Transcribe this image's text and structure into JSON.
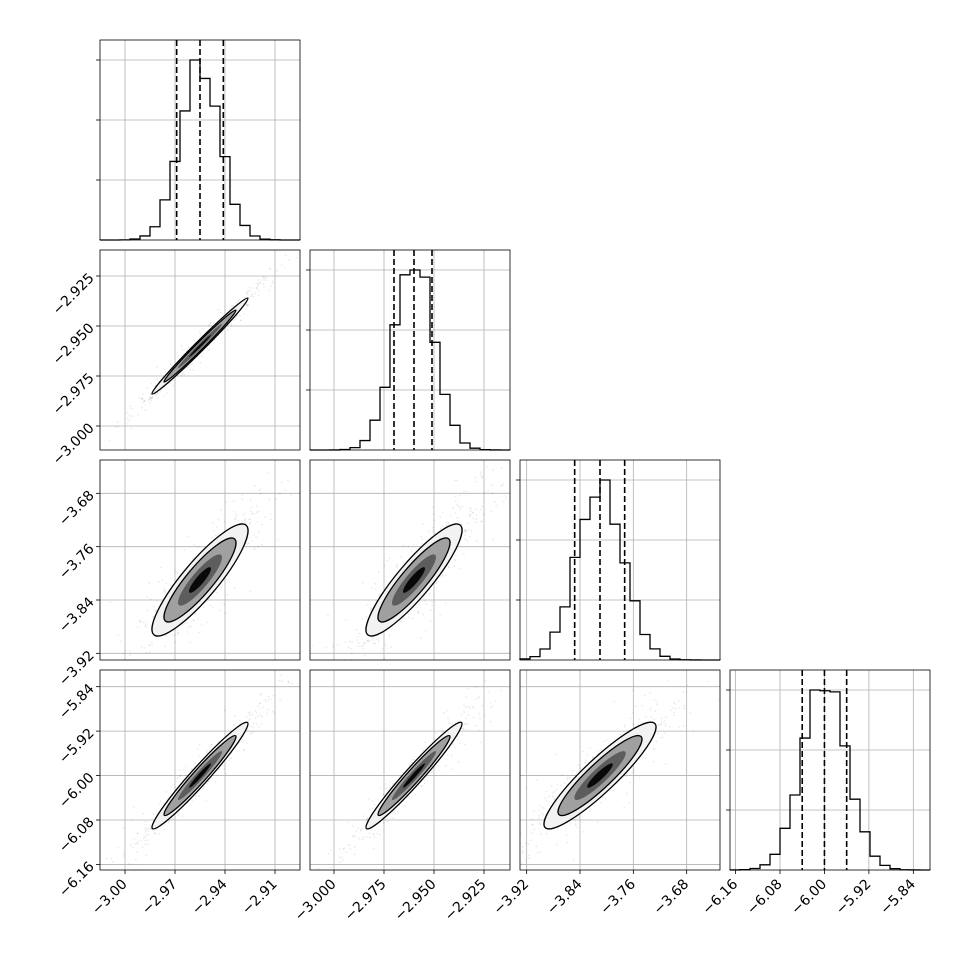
{
  "chart_data": {
    "type": "corner",
    "parameters": [
      {
        "index": 0,
        "median": -2.955,
        "q16": -2.969,
        "q84": -2.941,
        "sd": 0.012,
        "range": [
          -3.015,
          -2.895
        ],
        "ticks": [
          {
            "v": -3.0,
            "label": "−3.00"
          },
          {
            "v": -2.97,
            "label": "−2.97"
          },
          {
            "v": -2.94,
            "label": "−2.94"
          },
          {
            "v": -2.91,
            "label": "−2.91"
          }
        ]
      },
      {
        "index": 1,
        "median": -2.96,
        "q16": -2.97,
        "q84": -2.951,
        "sd": 0.01,
        "range": [
          -3.012,
          -2.912
        ],
        "ticks": [
          {
            "v": -3.0,
            "label": "−3.000"
          },
          {
            "v": -2.975,
            "label": "−2.975"
          },
          {
            "v": -2.95,
            "label": "−2.950"
          },
          {
            "v": -2.925,
            "label": "−2.925"
          }
        ]
      },
      {
        "index": 2,
        "median": -3.81,
        "q16": -3.848,
        "q84": -3.773,
        "sd": 0.035,
        "range": [
          -3.93,
          -3.63
        ],
        "ticks": [
          {
            "v": -3.92,
            "label": "−3.92"
          },
          {
            "v": -3.84,
            "label": "−3.84"
          },
          {
            "v": -3.76,
            "label": "−3.76"
          },
          {
            "v": -3.68,
            "label": "−3.68"
          }
        ]
      },
      {
        "index": 3,
        "median": -6.0,
        "q16": -6.04,
        "q84": -5.96,
        "sd": 0.04,
        "range": [
          -6.17,
          -5.81
        ],
        "ticks": [
          {
            "v": -6.16,
            "label": "−6.16"
          },
          {
            "v": -6.08,
            "label": "−6.08"
          },
          {
            "v": -6.0,
            "label": "−6.00"
          },
          {
            "v": -5.92,
            "label": "−5.92"
          },
          {
            "v": -5.84,
            "label": "−5.84"
          }
        ]
      }
    ],
    "correlations": {
      "1-0": 0.99,
      "2-0": 0.88,
      "2-1": 0.89,
      "3-0": 0.97,
      "3-1": 0.97,
      "3-2": 0.91
    },
    "histogram_bins": 20,
    "quantile_lines": [
      "q16",
      "median",
      "q84"
    ],
    "grid": true,
    "colors": {
      "line": "#000000",
      "grid": "#b0b0b0",
      "points": "#000000",
      "fill_levels": [
        "#f2f2f2",
        "#a0a0a0",
        "#555555",
        "#000000"
      ]
    }
  }
}
